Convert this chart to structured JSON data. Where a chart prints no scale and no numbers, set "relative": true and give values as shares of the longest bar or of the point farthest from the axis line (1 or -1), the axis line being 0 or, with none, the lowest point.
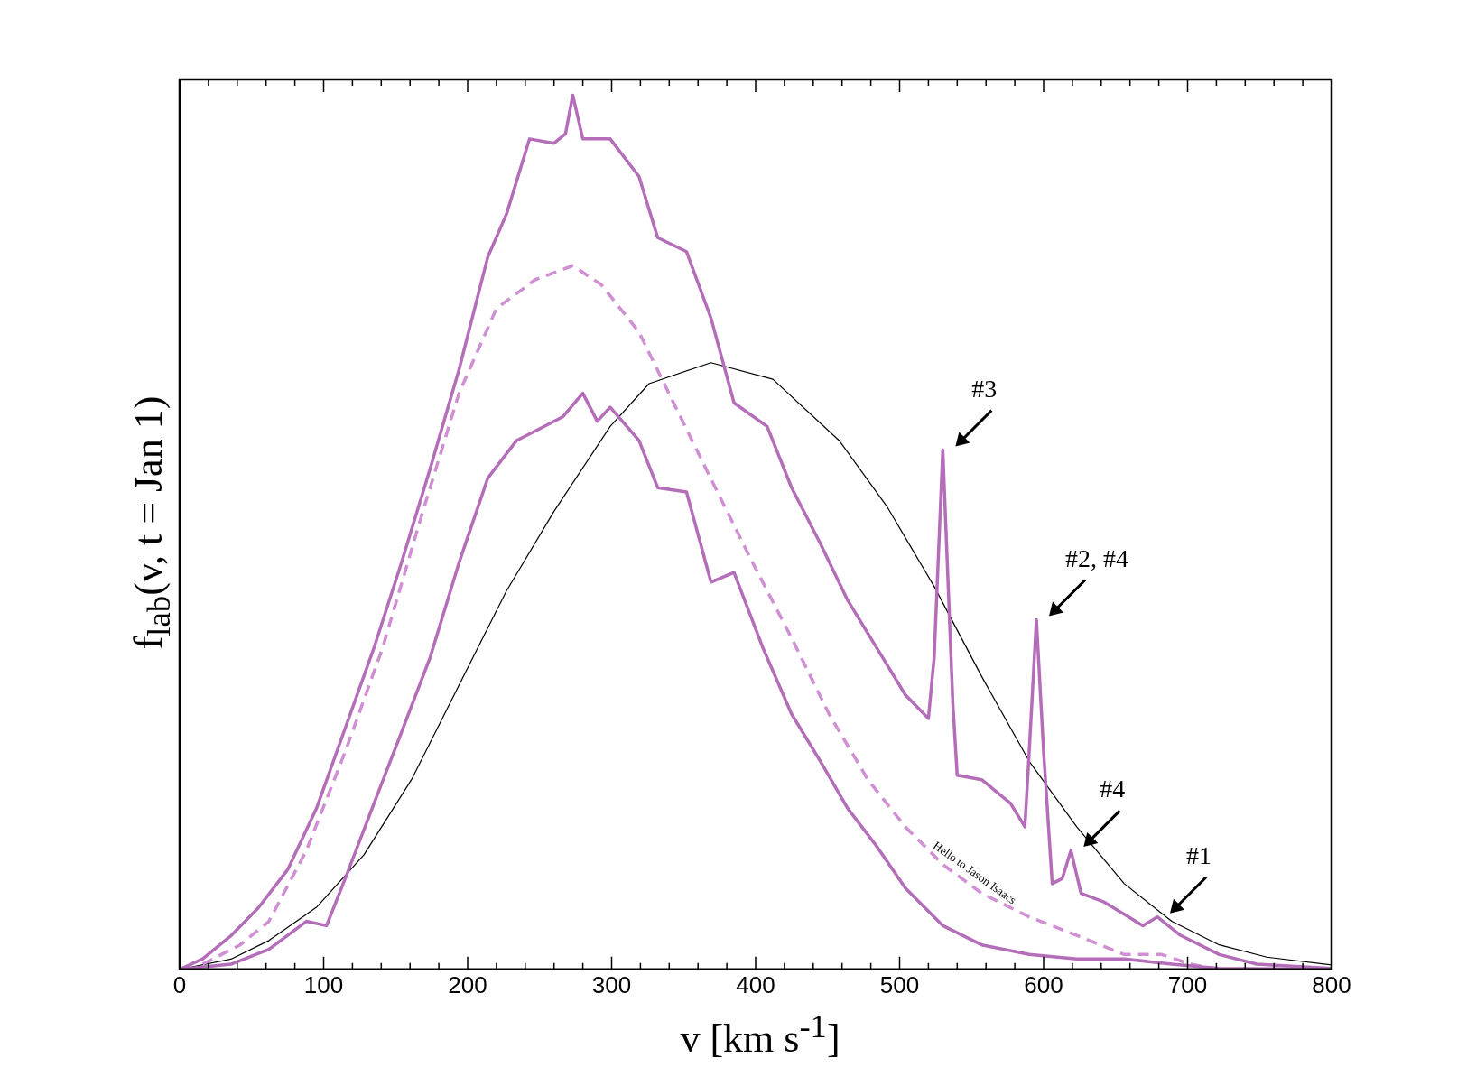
{
  "chart_data": {
    "type": "line",
    "relative": true,
    "xlabel": "v [km s$^{-1}$]",
    "ylabel": "f$_{lab}$(v, t = Jan 1)",
    "xlim": [
      0,
      800
    ],
    "xticks": [
      0,
      100,
      200,
      300,
      400,
      500,
      600,
      700,
      800
    ],
    "grid": false,
    "legend": false,
    "marker": "none",
    "series": [
      {
        "color": "#b46db8",
        "line_style": "solid",
        "x": [
          0,
          16,
          36,
          55,
          75,
          95,
          115,
          135,
          154,
          174,
          194,
          214,
          227,
          243,
          260,
          268,
          273,
          280,
          299,
          319,
          332,
          352,
          369,
          385,
          408,
          425,
          445,
          464,
          484,
          504,
          520,
          524,
          530,
          537,
          540,
          557,
          577,
          587,
          590,
          595,
          600,
          606,
          613,
          619,
          626,
          642,
          669,
          679,
          695,
          722,
          748,
          800
        ],
        "values": [
          0,
          0.012,
          0.039,
          0.071,
          0.114,
          0.184,
          0.276,
          0.368,
          0.465,
          0.573,
          0.686,
          0.815,
          0.864,
          0.95,
          0.945,
          0.956,
          1,
          0.95,
          0.95,
          0.907,
          0.837,
          0.821,
          0.745,
          0.648,
          0.621,
          0.551,
          0.487,
          0.422,
          0.368,
          0.314,
          0.287,
          0.357,
          0.594,
          0.303,
          0.222,
          0.217,
          0.19,
          0.163,
          0.249,
          0.4,
          0.249,
          0.098,
          0.104,
          0.136,
          0.087,
          0.077,
          0.05,
          0.06,
          0.039,
          0.017,
          0.006,
          0.001
        ]
      },
      {
        "color": "#b46db8",
        "line_style": "solid",
        "x": [
          0,
          36,
          62,
          88,
          102,
          115,
          135,
          154,
          174,
          194,
          214,
          234,
          253,
          266,
          280,
          290,
          299,
          319,
          332,
          352,
          369,
          385,
          405,
          425,
          445,
          464,
          484,
          504,
          530,
          557,
          590,
          623,
          656,
          689,
          722,
          800
        ],
        "values": [
          0,
          0.006,
          0.023,
          0.055,
          0.05,
          0.104,
          0.19,
          0.271,
          0.357,
          0.465,
          0.562,
          0.605,
          0.621,
          0.632,
          0.659,
          0.627,
          0.643,
          0.605,
          0.551,
          0.546,
          0.443,
          0.454,
          0.368,
          0.292,
          0.238,
          0.184,
          0.141,
          0.093,
          0.05,
          0.028,
          0.017,
          0.012,
          0.012,
          0.006,
          0.001,
          0
        ]
      },
      {
        "color": "#d08fd3",
        "line_style": "dashed",
        "x": [
          16,
          42,
          62,
          88,
          115,
          141,
          168,
          194,
          220,
          247,
          273,
          293,
          319,
          346,
          372,
          398,
          425,
          451,
          478,
          504,
          530,
          557,
          590,
          623,
          656,
          682,
          702,
          722
        ],
        "values": [
          0.006,
          0.028,
          0.055,
          0.136,
          0.249,
          0.368,
          0.519,
          0.659,
          0.756,
          0.789,
          0.805,
          0.783,
          0.729,
          0.638,
          0.551,
          0.465,
          0.379,
          0.292,
          0.217,
          0.163,
          0.12,
          0.087,
          0.06,
          0.039,
          0.017,
          0.017,
          0.006,
          0
        ]
      },
      {
        "color": "#000000",
        "line_style": "solid",
        "x": [
          0,
          36,
          62,
          95,
          128,
          161,
          194,
          227,
          260,
          299,
          326,
          369,
          412,
          458,
          491,
          524,
          557,
          590,
          623,
          656,
          689,
          722,
          755,
          800
        ],
        "values": [
          0,
          0.012,
          0.033,
          0.071,
          0.131,
          0.217,
          0.325,
          0.433,
          0.524,
          0.621,
          0.67,
          0.694,
          0.675,
          0.605,
          0.53,
          0.438,
          0.335,
          0.238,
          0.163,
          0.098,
          0.055,
          0.028,
          0.014,
          0.005
        ]
      }
    ],
    "annotations": [
      {
        "text": "#3",
        "x": 530,
        "y": 0.594
      },
      {
        "text": "#2, #4",
        "x": 595,
        "y": 0.4
      },
      {
        "text": "#4",
        "x": 619,
        "y": 0.136
      },
      {
        "text": "#1",
        "x": 679,
        "y": 0.06
      },
      "Hello to Jason Isaacs"
    ]
  }
}
